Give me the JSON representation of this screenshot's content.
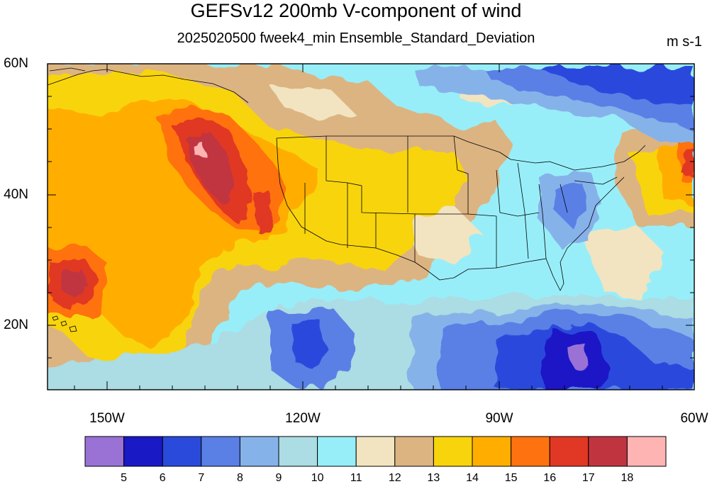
{
  "title": "GEFSv12 200mb V-component of wind",
  "subtitle": "2025020500 fweek4_min Ensemble_Standard_Deviation",
  "units": "m s-1",
  "lat_labels": [
    "60N",
    "40N",
    "20N"
  ],
  "lon_labels": [
    "150W",
    "120W",
    "90W",
    "60W"
  ],
  "colorbar": {
    "levels": [
      "5",
      "6",
      "7",
      "8",
      "9",
      "10",
      "11",
      "12",
      "13",
      "14",
      "15",
      "16",
      "17",
      "18"
    ],
    "colors": [
      "#9a72d6",
      "#1a19c6",
      "#2a4adc",
      "#5a80e6",
      "#86b2ea",
      "#acdce4",
      "#98eef8",
      "#f2e4c0",
      "#dcb482",
      "#f8d40c",
      "#ffae00",
      "#ff7210",
      "#e03824",
      "#c03440",
      "#ffb4b4"
    ]
  },
  "map": {
    "region": "North Pacific and contiguous United States",
    "lat_range": [
      10,
      60
    ],
    "lon_range": [
      -159,
      -60
    ],
    "features": [
      "coastlines",
      "US state boundaries"
    ]
  }
}
